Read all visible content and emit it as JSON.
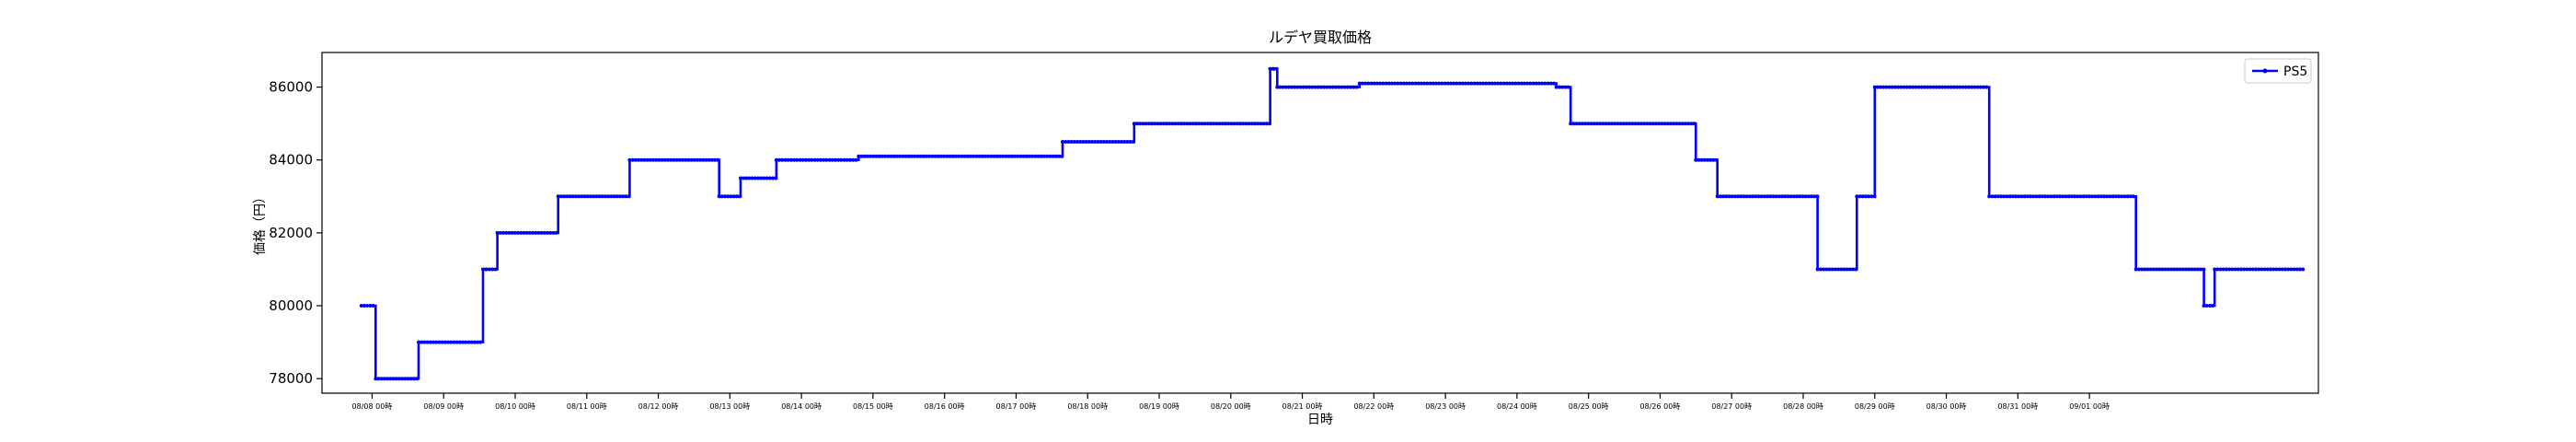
{
  "chart_data": {
    "type": "line",
    "title": "ルデヤ買取価格",
    "xlabel": "日時",
    "ylabel": "価格（円）",
    "ylim": [
      77600,
      86950
    ],
    "yticks": [
      78000,
      80000,
      82000,
      84000,
      86000
    ],
    "x_tick_labels": [
      "08/08 00時",
      "08/09 00時",
      "08/10 00時",
      "08/11 00時",
      "08/12 00時",
      "08/13 00時",
      "08/14 00時",
      "08/15 00時",
      "08/16 00時",
      "08/17 00時",
      "08/18 00時",
      "08/19 00時",
      "08/20 00時",
      "08/21 00時",
      "08/22 00時",
      "08/23 00時",
      "08/24 00時",
      "08/25 00時",
      "08/26 00時",
      "08/27 00時",
      "08/28 00時",
      "08/29 00時",
      "08/30 00時",
      "08/31 00時",
      "09/01 00時"
    ],
    "xlim_days": [
      -0.7,
      27.2
    ],
    "legend": "top-right",
    "grid": false,
    "line_color": "#0000ff",
    "series": [
      {
        "name": "PS5",
        "x_days": [
          -0.15,
          0.05,
          0.05,
          0.65,
          0.65,
          1.55,
          1.55,
          1.6,
          1.6,
          1.75,
          1.75,
          2.6,
          2.6,
          3.6,
          3.6,
          4.85,
          4.85,
          5.15,
          5.15,
          5.65,
          5.65,
          6.8,
          6.8,
          9.65,
          9.65,
          10.65,
          10.65,
          12.55,
          12.55,
          12.6,
          12.6,
          12.65,
          12.65,
          13.8,
          13.8,
          16.55,
          16.55,
          16.75,
          16.75,
          18.5,
          18.5,
          18.8,
          18.8,
          20.2,
          20.2,
          20.75,
          20.75,
          21.0,
          21.0,
          22.6,
          22.6,
          24.65,
          24.65,
          25.6,
          25.6,
          25.75,
          25.75,
          27.0
        ],
        "y": [
          80000,
          80000,
          78000,
          78000,
          79000,
          79000,
          81000,
          81000,
          81000,
          81000,
          82000,
          82000,
          83000,
          83000,
          84000,
          84000,
          83000,
          83000,
          83500,
          83500,
          84000,
          84000,
          84100,
          84100,
          84500,
          84500,
          85000,
          85000,
          86500,
          86500,
          86500,
          86500,
          86000,
          86000,
          86100,
          86100,
          86000,
          86000,
          85000,
          85000,
          84000,
          84000,
          83000,
          83000,
          81000,
          81000,
          83000,
          83000,
          86000,
          86000,
          83000,
          83000,
          81000,
          81000,
          80000,
          80000,
          81000,
          81000
        ]
      }
    ]
  }
}
